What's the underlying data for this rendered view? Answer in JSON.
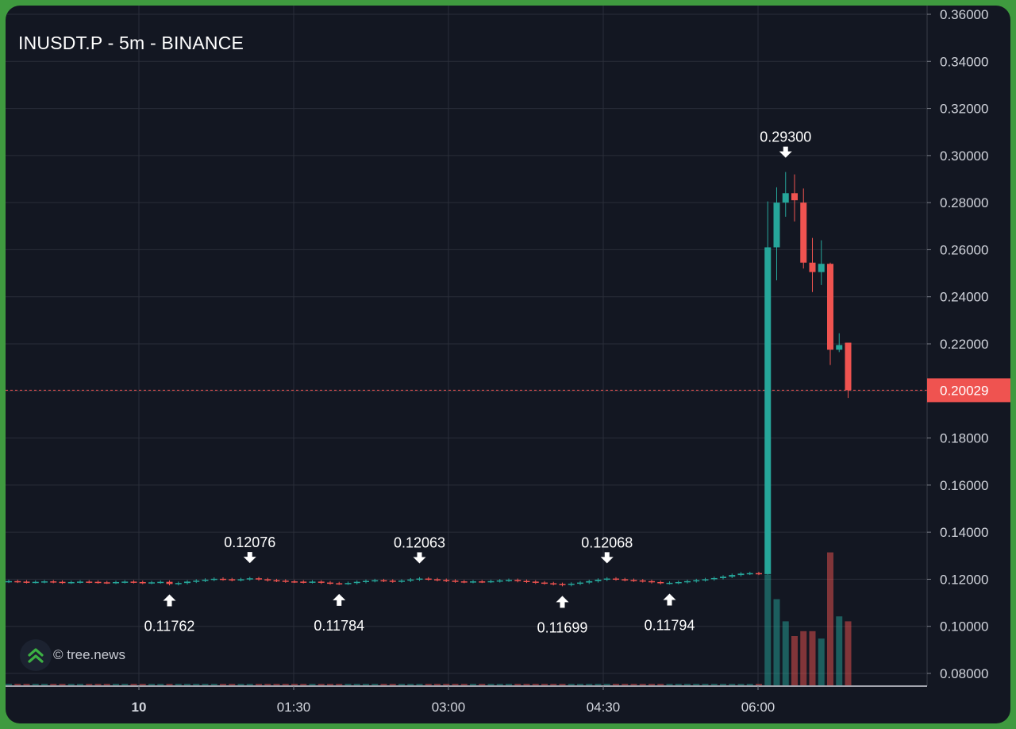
{
  "title": "INUSDT.P - 5m - BINANCE",
  "watermark": {
    "text": "© tree.news",
    "icon": "tree-news-logo-icon"
  },
  "colors": {
    "background": "#131722",
    "grid": "#2a2e39",
    "up": "#26a69a",
    "down": "#ef5350",
    "text": "#d1d4dc",
    "frame": "#3f9a3f"
  },
  "chart_data": {
    "type": "candlestick",
    "interval": "5m",
    "ylim": [
      0.074,
      0.362
    ],
    "y_ticks": [
      "0.08000",
      "0.10000",
      "0.12000",
      "0.14000",
      "0.16000",
      "0.18000",
      "0.20000",
      "0.22000",
      "0.24000",
      "0.26000",
      "0.28000",
      "0.30000",
      "0.32000",
      "0.34000",
      "0.36000"
    ],
    "x_ticks": [
      {
        "label": "10",
        "bold": true
      },
      {
        "label": "01:30",
        "bold": false
      },
      {
        "label": "03:00",
        "bold": false
      },
      {
        "label": "04:30",
        "bold": false
      },
      {
        "label": "06:00",
        "bold": false
      }
    ],
    "current_price": {
      "label": "0.20029",
      "value": 0.20029
    },
    "annotations": [
      {
        "label": "0.11762",
        "value": 0.11762,
        "type": "low",
        "bar": 18
      },
      {
        "label": "0.12076",
        "value": 0.12076,
        "type": "high",
        "bar": 27
      },
      {
        "label": "0.11784",
        "value": 0.11784,
        "type": "low",
        "bar": 37
      },
      {
        "label": "0.12063",
        "value": 0.12063,
        "type": "high",
        "bar": 46
      },
      {
        "label": "0.11699",
        "value": 0.11699,
        "type": "low",
        "bar": 62
      },
      {
        "label": "0.12068",
        "value": 0.12068,
        "type": "high",
        "bar": 67
      },
      {
        "label": "0.11794",
        "value": 0.11794,
        "type": "low",
        "bar": 74
      },
      {
        "label": "0.29300",
        "value": 0.293,
        "type": "high",
        "bar": 87
      }
    ],
    "flat_candles": {
      "closes": [
        0.1192,
        0.119,
        0.1188,
        0.1189,
        0.1191,
        0.1189,
        0.1186,
        0.1188,
        0.119,
        0.1189,
        0.1187,
        0.1186,
        0.1188,
        0.119,
        0.1188,
        0.1185,
        0.1187,
        0.1189,
        0.118,
        0.1184,
        0.119,
        0.1194,
        0.1198,
        0.1202,
        0.12,
        0.1197,
        0.12,
        0.1204,
        0.12,
        0.1196,
        0.1194,
        0.1191,
        0.119,
        0.1188,
        0.119,
        0.1186,
        0.1183,
        0.1182,
        0.1184,
        0.1189,
        0.1193,
        0.1196,
        0.1194,
        0.1191,
        0.1194,
        0.1199,
        0.1203,
        0.12,
        0.1197,
        0.1194,
        0.1191,
        0.1189,
        0.1191,
        0.119,
        0.1192,
        0.1195,
        0.1197,
        0.1193,
        0.119,
        0.1186,
        0.1183,
        0.118,
        0.1176,
        0.1181,
        0.1186,
        0.1192,
        0.1198,
        0.1203,
        0.12,
        0.1197,
        0.1195,
        0.1192,
        0.1188,
        0.1184,
        0.1185,
        0.1188,
        0.1192,
        0.1196,
        0.12,
        0.1205,
        0.1211,
        0.1218,
        0.1224,
        0.1226,
        0.1224
      ],
      "open": 0.119,
      "wick_pad": 0.0006
    },
    "spike_candles": [
      {
        "o": 0.1222,
        "h": 0.2805,
        "l": 0.122,
        "c": 0.261
      },
      {
        "o": 0.261,
        "h": 0.2865,
        "l": 0.247,
        "c": 0.28
      },
      {
        "o": 0.28,
        "h": 0.293,
        "l": 0.274,
        "c": 0.284
      },
      {
        "o": 0.284,
        "h": 0.292,
        "l": 0.272,
        "c": 0.281
      },
      {
        "o": 0.28,
        "h": 0.286,
        "l": 0.252,
        "c": 0.2545
      },
      {
        "o": 0.2545,
        "h": 0.265,
        "l": 0.242,
        "c": 0.2505
      },
      {
        "o": 0.2505,
        "h": 0.264,
        "l": 0.245,
        "c": 0.254
      },
      {
        "o": 0.254,
        "h": 0.2545,
        "l": 0.211,
        "c": 0.2175
      },
      {
        "o": 0.2175,
        "h": 0.2245,
        "l": 0.2165,
        "c": 0.2195
      },
      {
        "o": 0.2205,
        "h": 0.2205,
        "l": 0.197,
        "c": 0.2003
      }
    ],
    "volume": [
      {
        "v": 0.45,
        "dir": "up"
      },
      {
        "v": 0.35,
        "dir": "up"
      },
      {
        "v": 0.26,
        "dir": "up"
      },
      {
        "v": 0.2,
        "dir": "down"
      },
      {
        "v": 0.22,
        "dir": "down"
      },
      {
        "v": 0.22,
        "dir": "down"
      },
      {
        "v": 0.19,
        "dir": "up"
      },
      {
        "v": 0.54,
        "dir": "down"
      },
      {
        "v": 0.28,
        "dir": "up"
      },
      {
        "v": 0.26,
        "dir": "down"
      }
    ]
  }
}
